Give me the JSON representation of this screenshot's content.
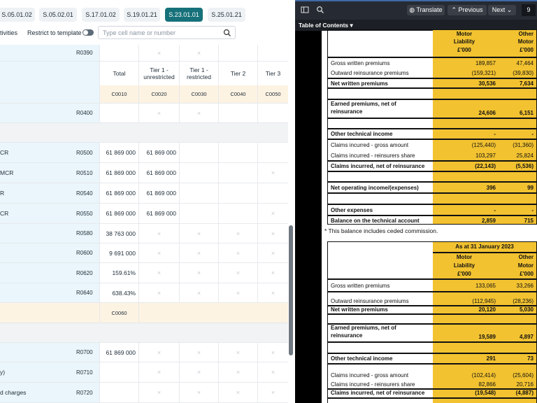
{
  "left": {
    "tabs": [
      "S.05.01.02",
      "S.05.02.01",
      "S.17.01.02",
      "S.19.01.21",
      "S.23.01.01",
      "S.25.01.21"
    ],
    "active_tab": "S.23.01.01",
    "toolbar": {
      "activities_label": "tivities",
      "restrict_label": "Restrict to template",
      "search_placeholder": "Type cell name or number"
    },
    "header": {
      "columns": [
        "Total",
        "Tier 1 - unrestricted",
        "Tier 1 - restricted",
        "Tier 2",
        "Tier 3"
      ],
      "codes": [
        "C0010",
        "C0020",
        "C0030",
        "C0040",
        "C0050"
      ]
    },
    "c0060": "C0060",
    "rows": [
      {
        "label": "",
        "code": "R0390",
        "vals": [
          "",
          "×",
          "×",
          "",
          ""
        ]
      },
      {
        "label": "",
        "code": "R0400",
        "vals": [
          "",
          "×",
          "×",
          "",
          ""
        ]
      },
      {
        "label": "CR",
        "code": "R0500",
        "vals": [
          "61 869 000",
          "61 869 000",
          "",
          "",
          ""
        ]
      },
      {
        "label": "MCR",
        "code": "R0510",
        "vals": [
          "61 869 000",
          "61 869 000",
          "",
          "",
          "×"
        ]
      },
      {
        "label": "R",
        "code": "R0540",
        "vals": [
          "61 869 000",
          "61 869 000",
          "",
          "",
          ""
        ]
      },
      {
        "label": "CR",
        "code": "R0550",
        "vals": [
          "61 869 000",
          "61 869 000",
          "",
          "",
          "×"
        ]
      },
      {
        "label": "",
        "code": "R0580",
        "vals": [
          "38 763 000",
          "×",
          "×",
          "×",
          "×"
        ]
      },
      {
        "label": "",
        "code": "R0600",
        "vals": [
          "9 691 000",
          "×",
          "×",
          "×",
          "×"
        ]
      },
      {
        "label": "",
        "code": "R0620",
        "vals": [
          "159.61%",
          "×",
          "×",
          "×",
          "×"
        ]
      },
      {
        "label": "",
        "code": "R0640",
        "vals": [
          "638.43%",
          "×",
          "×",
          "×",
          "×"
        ]
      },
      {
        "label": "",
        "code": "R0700",
        "vals": [
          "61 869 000",
          "×",
          "×",
          "×",
          "×"
        ]
      },
      {
        "label": "y)",
        "code": "R0710",
        "vals": [
          "",
          "×",
          "×",
          "×",
          "×"
        ]
      },
      {
        "label": "d charges",
        "code": "R0720",
        "vals": [
          "",
          "×",
          "×",
          "×",
          "×"
        ]
      }
    ]
  },
  "right": {
    "toolbar": {
      "translate": "Translate",
      "previous": "Previous",
      "next": "Next",
      "page": "9"
    },
    "toc_label": "Table of Contents",
    "table1": {
      "col1_head": [
        "Motor",
        "Liability",
        "£'000"
      ],
      "col2_head": [
        "Other",
        "Motor",
        "£'000"
      ],
      "rows": [
        {
          "label": "Gross written premiums",
          "v1": "189,857",
          "v2": "47,464"
        },
        {
          "label": "Outward reinsurance premiums",
          "v1": "(159,321)",
          "v2": "(39,830)"
        },
        {
          "label": "Net written premiums",
          "v1": "30,536",
          "v2": "7,634"
        },
        {
          "label": "Earned premiums, net of",
          "label2": "reinsurance",
          "v1": "24,606",
          "v2": "6,151"
        },
        {
          "label": "Other technical income",
          "v1": "-",
          "v2": "-"
        },
        {
          "label": "Claims incurred - gross amount",
          "v1": "(125,440)",
          "v2": "(31,360)"
        },
        {
          "label": "Claims incurred - reinsurers share",
          "v1": "103,297",
          "v2": "25,824"
        },
        {
          "label": "Claims incurred, net of reinsurance",
          "v1": "(22,143)",
          "v2": "(5,536)"
        },
        {
          "label": "Net operating income/(expenses)",
          "v1": "396",
          "v2": "99"
        },
        {
          "label": "Other expenses",
          "v1": "-",
          "v2": "-"
        },
        {
          "label": "Balance on the technical account",
          "v1": "2,859",
          "v2": "715"
        }
      ],
      "note": "* This balance includes ceded commission."
    },
    "table2": {
      "title": "As at 31 January 2023",
      "col1_head": [
        "Motor",
        "Liability",
        "£'000"
      ],
      "col2_head": [
        "Other",
        "Motor",
        "£'000"
      ],
      "rows": [
        {
          "label": "Gross written premiums",
          "v1": "133,065",
          "v2": "33,266"
        },
        {
          "label": "Outward reinsurance premiums",
          "v1": "(112,945)",
          "v2": "(28,236)"
        },
        {
          "label": "Net written premiums",
          "v1": "20,120",
          "v2": "5,030"
        },
        {
          "label": "Earned premiums, net of",
          "label2": "reinsurance",
          "v1": "19,589",
          "v2": "4,897"
        },
        {
          "label": "Other technical income",
          "v1": "291",
          "v2": "73"
        },
        {
          "label": "Claims incurred - gross amount",
          "v1": "(102,414)",
          "v2": "(25,604)"
        },
        {
          "label": "Claims incurred - reinsurers share",
          "v1": "82,866",
          "v2": "20,716"
        },
        {
          "label": "Claims incurred, net of reinsurance",
          "v1": "(19,548)",
          "v2": "(4,887)"
        }
      ]
    }
  }
}
